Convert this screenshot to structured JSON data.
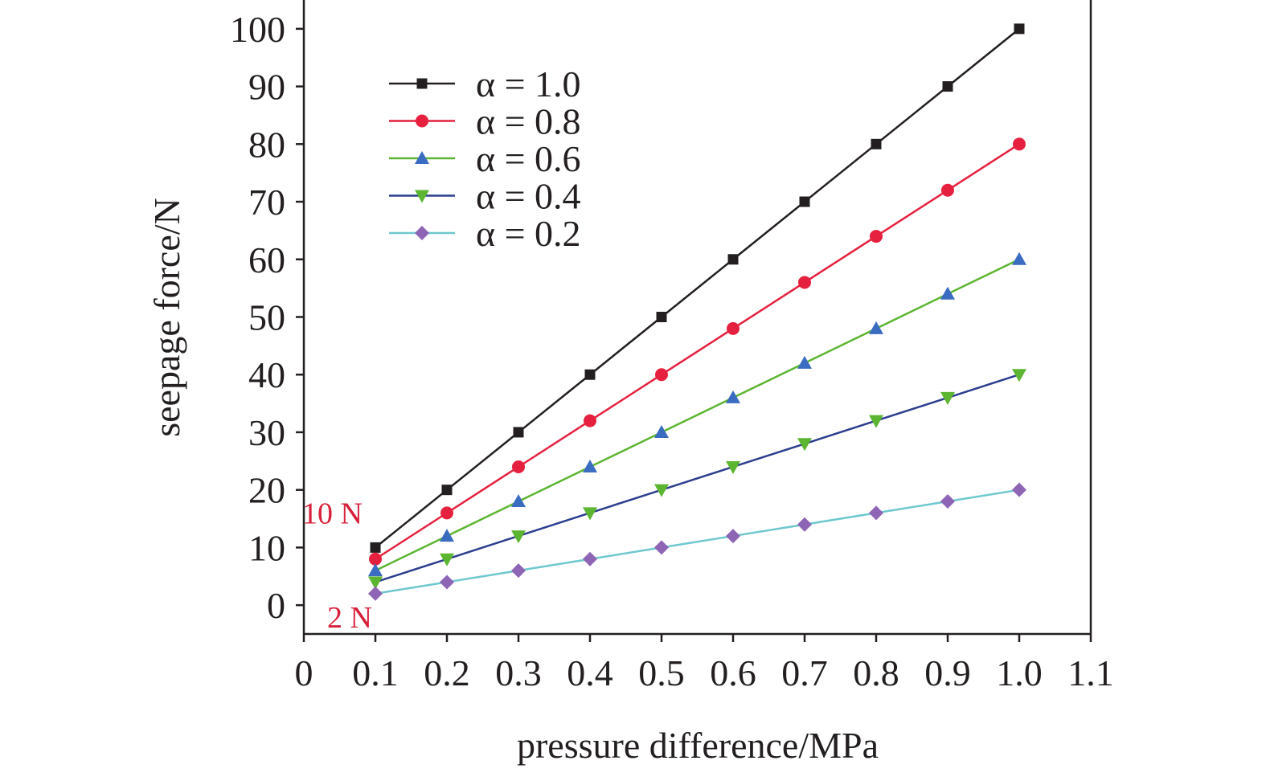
{
  "chart_data": {
    "type": "line",
    "xlabel": "pressure difference/MPa",
    "ylabel": "seepage force/N",
    "xlim": [
      0,
      1.1
    ],
    "ylim": [
      -5,
      105
    ],
    "x_ticks": [
      {
        "value": 0,
        "label": "0"
      },
      {
        "value": 0.1,
        "label": "0.1"
      },
      {
        "value": 0.2,
        "label": "0.2"
      },
      {
        "value": 0.3,
        "label": "0.3"
      },
      {
        "value": 0.4,
        "label": "0.4"
      },
      {
        "value": 0.5,
        "label": "0.5"
      },
      {
        "value": 0.6,
        "label": "0.6"
      },
      {
        "value": 0.7,
        "label": "0.7"
      },
      {
        "value": 0.8,
        "label": "0.8"
      },
      {
        "value": 0.9,
        "label": "0.9"
      },
      {
        "value": 1.0,
        "label": "1.0"
      },
      {
        "value": 1.1,
        "label": "1.1"
      }
    ],
    "y_ticks": [
      {
        "value": 0,
        "label": "0"
      },
      {
        "value": 10,
        "label": "10"
      },
      {
        "value": 20,
        "label": "20"
      },
      {
        "value": 30,
        "label": "30"
      },
      {
        "value": 40,
        "label": "40"
      },
      {
        "value": 50,
        "label": "50"
      },
      {
        "value": 60,
        "label": "60"
      },
      {
        "value": 70,
        "label": "70"
      },
      {
        "value": 80,
        "label": "80"
      },
      {
        "value": 90,
        "label": "90"
      },
      {
        "value": 100,
        "label": "100"
      }
    ],
    "x": [
      0.1,
      0.2,
      0.3,
      0.4,
      0.5,
      0.6,
      0.7,
      0.8,
      0.9,
      1.0
    ],
    "grid": false,
    "legend_position": "top-left",
    "series": [
      {
        "name": "α = 1.0",
        "color": "#231f20",
        "marker": "square",
        "values": [
          10,
          20,
          30,
          40,
          50,
          60,
          70,
          80,
          90,
          100
        ]
      },
      {
        "name": "α = 0.8",
        "color": "#e5213f",
        "marker_color": "#e5213f",
        "marker": "circle",
        "values": [
          8,
          16,
          24,
          32,
          40,
          48,
          56,
          64,
          72,
          80
        ]
      },
      {
        "name": "α = 0.6",
        "color": "#5cb531",
        "marker_color": "#3a6cc1",
        "marker": "triangle-up",
        "values": [
          6,
          12,
          18,
          24,
          30,
          36,
          42,
          48,
          54,
          60
        ]
      },
      {
        "name": "α = 0.4",
        "color": "#2c3e8f",
        "marker_color": "#5cb531",
        "marker": "triangle-down",
        "values": [
          4,
          8,
          12,
          16,
          20,
          24,
          28,
          32,
          36,
          40
        ]
      },
      {
        "name": "α = 0.2",
        "color": "#6fc8cf",
        "marker_color": "#8e64b5",
        "marker": "diamond",
        "values": [
          2,
          4,
          6,
          8,
          10,
          12,
          14,
          16,
          18,
          20
        ]
      }
    ],
    "annotations": [
      {
        "text": "10 N",
        "x": 0.1,
        "y": 10,
        "color": "#d8203a"
      },
      {
        "text": "2 N",
        "x": 0.1,
        "y": 2,
        "color": "#d8203a"
      }
    ]
  }
}
